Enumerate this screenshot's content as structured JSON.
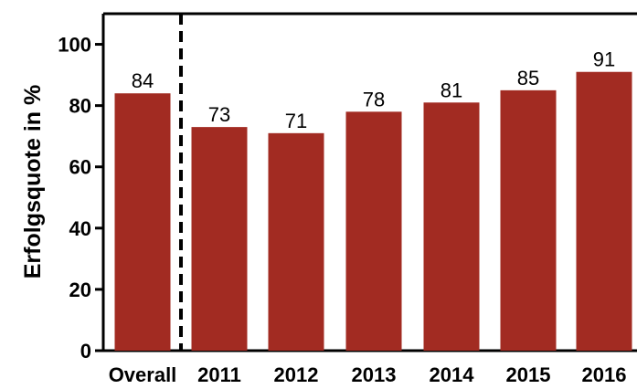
{
  "chart_data": {
    "type": "bar",
    "title": "",
    "xlabel": "",
    "ylabel": "Erfolgsquote in %",
    "categories": [
      "Overall",
      "2011",
      "2012",
      "2013",
      "2014",
      "2015",
      "2016"
    ],
    "values": [
      84,
      73,
      71,
      78,
      81,
      85,
      91
    ],
    "data_labels": [
      "84",
      "73",
      "71",
      "78",
      "81",
      "85",
      "91"
    ],
    "ylim": [
      0,
      110
    ],
    "yticks": [
      0,
      20,
      40,
      60,
      80,
      100
    ],
    "ytick_labels": [
      "0",
      "20",
      "40",
      "60",
      "80",
      "100"
    ],
    "bar_color": "#a22b22",
    "separator_after_category": "Overall",
    "grid": false,
    "legend": "none"
  }
}
